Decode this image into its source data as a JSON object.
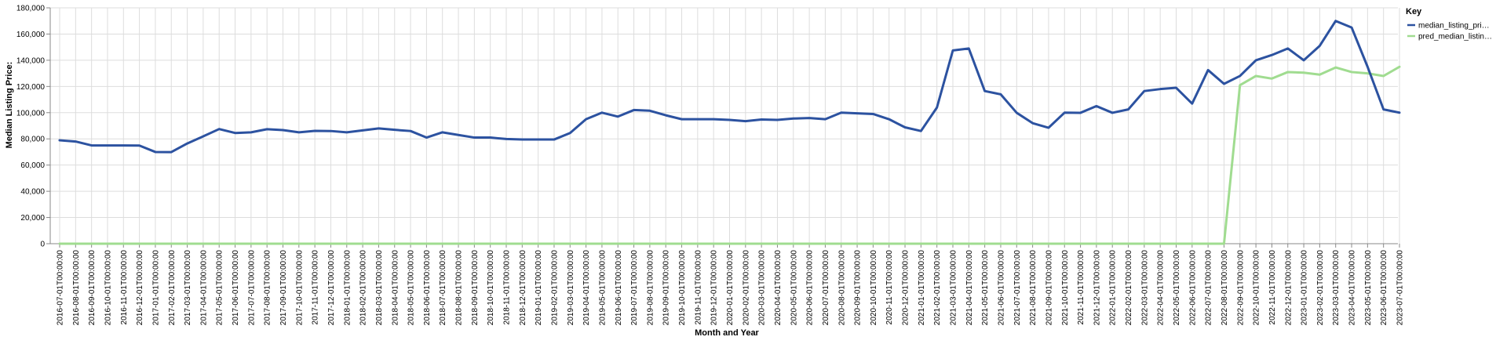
{
  "chart_data": {
    "type": "line",
    "xlabel": "Month and Year",
    "ylabel": "Median Listing Price:",
    "ylim": [
      0,
      180000
    ],
    "y_ticks": [
      "0",
      "20,000",
      "40,000",
      "60,000",
      "80,000",
      "100,000",
      "120,000",
      "140,000",
      "160,000",
      "180,000"
    ],
    "grid": true,
    "legend": {
      "title": "Key",
      "placement": "right-top",
      "entries": [
        "median_listing_pri…",
        "pred_median_listin…"
      ]
    },
    "x": [
      "2016-07-01T00:00:00",
      "2016-08-01T00:00:00",
      "2016-09-01T00:00:00",
      "2016-10-01T00:00:00",
      "2016-11-01T00:00:00",
      "2016-12-01T00:00:00",
      "2017-01-01T00:00:00",
      "2017-02-01T00:00:00",
      "2017-03-01T00:00:00",
      "2017-04-01T00:00:00",
      "2017-05-01T00:00:00",
      "2017-06-01T00:00:00",
      "2017-07-01T00:00:00",
      "2017-08-01T00:00:00",
      "2017-09-01T00:00:00",
      "2017-10-01T00:00:00",
      "2017-11-01T00:00:00",
      "2017-12-01T00:00:00",
      "2018-01-01T00:00:00",
      "2018-02-01T00:00:00",
      "2018-03-01T00:00:00",
      "2018-04-01T00:00:00",
      "2018-05-01T00:00:00",
      "2018-06-01T00:00:00",
      "2018-07-01T00:00:00",
      "2018-08-01T00:00:00",
      "2018-09-01T00:00:00",
      "2018-10-01T00:00:00",
      "2018-11-01T00:00:00",
      "2018-12-01T00:00:00",
      "2019-01-01T00:00:00",
      "2019-02-01T00:00:00",
      "2019-03-01T00:00:00",
      "2019-04-01T00:00:00",
      "2019-05-01T00:00:00",
      "2019-06-01T00:00:00",
      "2019-07-01T00:00:00",
      "2019-08-01T00:00:00",
      "2019-09-01T00:00:00",
      "2019-10-01T00:00:00",
      "2019-11-01T00:00:00",
      "2019-12-01T00:00:00",
      "2020-01-01T00:00:00",
      "2020-02-01T00:00:00",
      "2020-03-01T00:00:00",
      "2020-04-01T00:00:00",
      "2020-05-01T00:00:00",
      "2020-06-01T00:00:00",
      "2020-07-01T00:00:00",
      "2020-08-01T00:00:00",
      "2020-09-01T00:00:00",
      "2020-10-01T00:00:00",
      "2020-11-01T00:00:00",
      "2020-12-01T00:00:00",
      "2021-01-01T00:00:00",
      "2021-02-01T00:00:00",
      "2021-03-01T00:00:00",
      "2021-04-01T00:00:00",
      "2021-05-01T00:00:00",
      "2021-06-01T00:00:00",
      "2021-07-01T00:00:00",
      "2021-08-01T00:00:00",
      "2021-09-01T00:00:00",
      "2021-10-01T00:00:00",
      "2021-11-01T00:00:00",
      "2021-12-01T00:00:00",
      "2022-01-01T00:00:00",
      "2022-02-01T00:00:00",
      "2022-03-01T00:00:00",
      "2022-04-01T00:00:00",
      "2022-05-01T00:00:00",
      "2022-06-01T00:00:00",
      "2022-07-01T00:00:00",
      "2022-08-01T00:00:00",
      "2022-09-01T00:00:00",
      "2022-10-01T00:00:00",
      "2022-11-01T00:00:00",
      "2022-12-01T00:00:00",
      "2023-01-01T00:00:00",
      "2023-02-01T00:00:00",
      "2023-03-01T00:00:00",
      "2023-04-01T00:00:00",
      "2023-05-01T00:00:00",
      "2023-06-01T00:00:00",
      "2023-07-01T00:00:00"
    ],
    "series": [
      {
        "name": "median_listing_pri…",
        "color": "#2c52a0",
        "values": [
          78900,
          78000,
          75000,
          75000,
          75000,
          74900,
          70000,
          69900,
          76500,
          81900,
          87500,
          84500,
          85000,
          87400,
          86700,
          85000,
          86100,
          86000,
          85000,
          86500,
          88000,
          86900,
          86000,
          81000,
          85000,
          83000,
          81000,
          81000,
          79900,
          79500,
          79500,
          79500,
          84500,
          95000,
          100000,
          97000,
          102000,
          101500,
          98000,
          95000,
          95000,
          95000,
          94500,
          93500,
          94800,
          94500,
          95500,
          95900,
          95000,
          100000,
          99500,
          99000,
          95000,
          88800,
          86000,
          103900,
          147500,
          149000,
          116500,
          114000,
          99900,
          92000,
          88500,
          100000,
          99900,
          105000,
          99900,
          102500,
          116500,
          118000,
          119000,
          106900,
          132500,
          122000,
          128000,
          140000,
          144000,
          149000,
          140000,
          151000,
          170000,
          165000,
          135000,
          102500,
          100000
        ]
      },
      {
        "name": "pred_median_listin…",
        "color": "#a0dc90",
        "values": [
          0,
          0,
          0,
          0,
          0,
          0,
          0,
          0,
          0,
          0,
          0,
          0,
          0,
          0,
          0,
          0,
          0,
          0,
          0,
          0,
          0,
          0,
          0,
          0,
          0,
          0,
          0,
          0,
          0,
          0,
          0,
          0,
          0,
          0,
          0,
          0,
          0,
          0,
          0,
          0,
          0,
          0,
          0,
          0,
          0,
          0,
          0,
          0,
          0,
          0,
          0,
          0,
          0,
          0,
          0,
          0,
          0,
          0,
          0,
          0,
          0,
          0,
          0,
          0,
          0,
          0,
          0,
          0,
          0,
          0,
          0,
          0,
          0,
          0,
          121000,
          128000,
          126000,
          131000,
          130500,
          129000,
          134500,
          131000,
          130000,
          128000,
          135000
        ]
      }
    ]
  }
}
